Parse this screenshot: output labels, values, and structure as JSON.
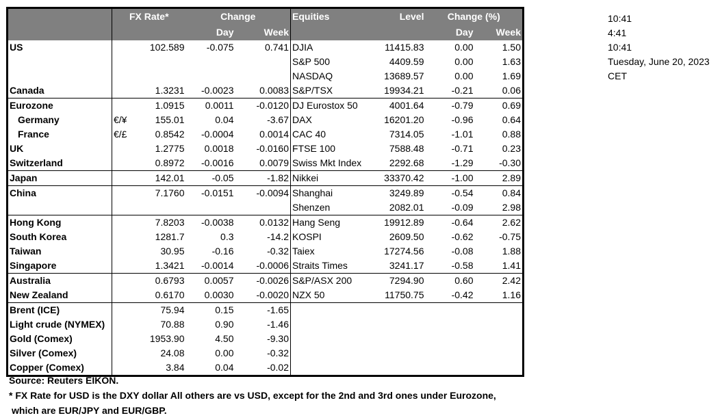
{
  "header": {
    "fx_rate": "FX Rate*",
    "change": "Change",
    "day": "Day",
    "week": "Week",
    "equities": "Equities",
    "level": "Level",
    "change_pct": "Change (%)",
    "eq_day": "Day",
    "eq_week": "Week"
  },
  "colors": {
    "header_bg": "#808080",
    "header_text": "#ffffff"
  },
  "groups": [
    {
      "rows": [
        {
          "country": "US",
          "sym": "",
          "fx": "102.589",
          "day": "-0.075",
          "week": "0.741",
          "eq": "DJIA",
          "level": "11415.83",
          "eq_day": "0.00",
          "eq_week": "1.50"
        },
        {
          "country": "",
          "sym": "",
          "fx": "",
          "day": "",
          "week": "",
          "eq": "S&P 500",
          "level": "4409.59",
          "eq_day": "0.00",
          "eq_week": "1.63"
        },
        {
          "country": "",
          "sym": "",
          "fx": "",
          "day": "",
          "week": "",
          "eq": "NASDAQ",
          "level": "13689.57",
          "eq_day": "0.00",
          "eq_week": "1.69"
        },
        {
          "country": "Canada",
          "sym": "",
          "fx": "1.3231",
          "day": "-0.0023",
          "week": "0.0083",
          "eq": "S&P/TSX",
          "level": "19934.21",
          "eq_day": "-0.21",
          "eq_week": "0.06"
        }
      ]
    },
    {
      "rows": [
        {
          "country": "Eurozone",
          "sym": "",
          "fx": "1.0915",
          "day": "0.0011",
          "week": "-0.0120",
          "eq": "DJ Eurostox 50",
          "level": "4001.64",
          "eq_day": "-0.79",
          "eq_week": "0.69"
        },
        {
          "country": "Germany",
          "indent": true,
          "sym": "€/¥",
          "fx": "155.01",
          "day": "0.04",
          "week": "-3.67",
          "eq": "DAX",
          "level": "16201.20",
          "eq_day": "-0.96",
          "eq_week": "0.64"
        },
        {
          "country": "France",
          "indent": true,
          "sym": "€/£",
          "fx": "0.8542",
          "day": "-0.0004",
          "week": "0.0014",
          "eq": "CAC 40",
          "level": "7314.05",
          "eq_day": "-1.01",
          "eq_week": "0.88"
        },
        {
          "country": "UK",
          "sym": "",
          "fx": "1.2775",
          "day": "0.0018",
          "week": "-0.0160",
          "eq": "FTSE 100",
          "level": "7588.48",
          "eq_day": "-0.71",
          "eq_week": "0.23"
        },
        {
          "country": "Switzerland",
          "sym": "",
          "fx": "0.8972",
          "day": "-0.0016",
          "week": "0.0079",
          "eq": "Swiss Mkt Index",
          "level": "2292.68",
          "eq_day": "-1.29",
          "eq_week": "-0.30"
        }
      ]
    },
    {
      "rows": [
        {
          "country": "Japan",
          "sym": "",
          "fx": "142.01",
          "day": "-0.05",
          "week": "-1.82",
          "eq": "Nikkei",
          "level": "33370.42",
          "eq_day": "-1.00",
          "eq_week": "2.89"
        }
      ]
    },
    {
      "rows": [
        {
          "country": "China",
          "sym": "",
          "fx": "7.1760",
          "day": "-0.0151",
          "week": "-0.0094",
          "eq": "Shanghai",
          "level": "3249.89",
          "eq_day": "-0.54",
          "eq_week": "0.84"
        },
        {
          "country": "",
          "sym": "",
          "fx": "",
          "day": "",
          "week": "",
          "eq": "Shenzen",
          "level": "2082.01",
          "eq_day": "-0.09",
          "eq_week": "2.98"
        }
      ]
    },
    {
      "rows": [
        {
          "country": "Hong Kong",
          "sym": "",
          "fx": "7.8203",
          "day": "-0.0038",
          "week": "0.0132",
          "eq": "Hang Seng",
          "level": "19912.89",
          "eq_day": "-0.64",
          "eq_week": "2.62"
        },
        {
          "country": "South Korea",
          "sym": "",
          "fx": "1281.7",
          "day": "0.3",
          "week": "-14.2",
          "eq": "KOSPI",
          "level": "2609.50",
          "eq_day": "-0.62",
          "eq_week": "-0.75"
        },
        {
          "country": "Taiwan",
          "sym": "",
          "fx": "30.95",
          "day": "-0.16",
          "week": "-0.32",
          "eq": "Taiex",
          "level": "17274.56",
          "eq_day": "-0.08",
          "eq_week": "1.88"
        },
        {
          "country": "Singapore",
          "sym": "",
          "fx": "1.3421",
          "day": "-0.0014",
          "week": "-0.0006",
          "eq": "Straits Times",
          "level": "3241.17",
          "eq_day": "-0.58",
          "eq_week": "1.41"
        }
      ]
    },
    {
      "rows": [
        {
          "country": "Australia",
          "sym": "",
          "fx": "0.6793",
          "day": "0.0057",
          "week": "-0.0026",
          "eq": "S&P/ASX  200",
          "level": "7294.90",
          "eq_day": "0.60",
          "eq_week": "2.42"
        },
        {
          "country": "New Zealand",
          "sym": "",
          "fx": "0.6170",
          "day": "0.0030",
          "week": "-0.0020",
          "eq": "NZX 50",
          "level": "11750.75",
          "eq_day": "-0.42",
          "eq_week": "1.16"
        }
      ]
    },
    {
      "rows": [
        {
          "country": "Brent (ICE)",
          "sym": "",
          "fx": "75.94",
          "day": "0.15",
          "week": "-1.65",
          "eq": "",
          "level": "",
          "eq_day": "",
          "eq_week": ""
        },
        {
          "country": "Light crude (NYMEX)",
          "sym": "",
          "fx": "70.88",
          "day": "0.90",
          "week": "-1.46",
          "eq": "",
          "level": "",
          "eq_day": "",
          "eq_week": ""
        },
        {
          "country": "Gold (Comex)",
          "sym": "",
          "fx": "1953.90",
          "day": "4.50",
          "week": "-9.30",
          "eq": "",
          "level": "",
          "eq_day": "",
          "eq_week": ""
        },
        {
          "country": "Silver (Comex)",
          "sym": "",
          "fx": "24.08",
          "day": "0.00",
          "week": "-0.32",
          "eq": "",
          "level": "",
          "eq_day": "",
          "eq_week": ""
        },
        {
          "country": "Copper (Comex)",
          "sym": "",
          "fx": "3.84",
          "day": "0.04",
          "week": "-0.02",
          "eq": "",
          "level": "",
          "eq_day": "",
          "eq_week": ""
        }
      ]
    }
  ],
  "clock": {
    "time1": "10:41",
    "time2": "4:41",
    "time3": "10:41",
    "date": "Tuesday, June 20, 2023",
    "zone": "CET"
  },
  "footer": {
    "source": "Source:  Reuters EIKON.",
    "note1": "* FX Rate for USD is the DXY dollar  All others are vs USD, except for the 2nd and 3rd ones under Eurozone,",
    "note2": "which are EUR/JPY and EUR/GBP."
  }
}
